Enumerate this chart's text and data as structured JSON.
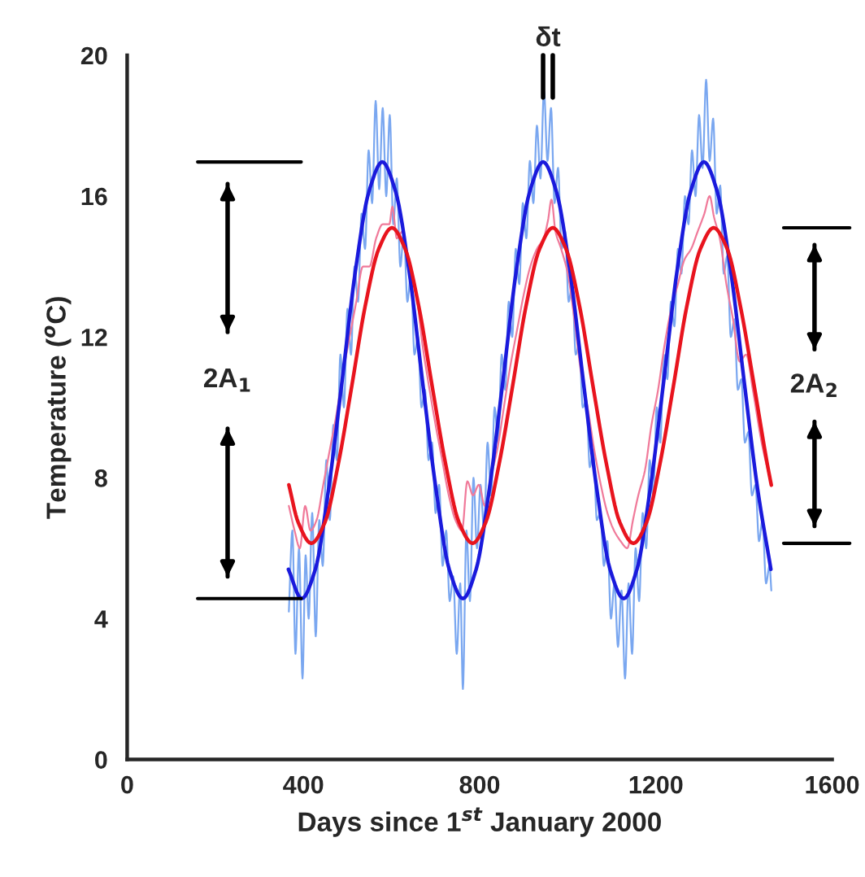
{
  "chart_data": {
    "type": "line",
    "xlabel": "Days since 1$^{st}$ January 2000",
    "ylabel": "Temperature ($^{o}$C)",
    "annotations": [
      "2A$_{1}$",
      "2A$_{2}$",
      "δt"
    ],
    "xlim": [
      0,
      1600
    ],
    "xticks": [
      0,
      400,
      800,
      1200,
      1600
    ],
    "ylim": [
      0,
      20
    ],
    "yticks": [
      0,
      4,
      8,
      12,
      16,
      20
    ],
    "grid": false,
    "legend": false,
    "marker": "none",
    "line_style": "solid",
    "series": [
      {
        "color": "#7aa7f0",
        "x": [
          367,
          375,
          382,
          390,
          398,
          405,
          412,
          420,
          428,
          436,
          444,
          452,
          460,
          468,
          476,
          484,
          492,
          500,
          508,
          516,
          524,
          532,
          540,
          548,
          556,
          564,
          572,
          580,
          588,
          596,
          604,
          612,
          620,
          628,
          636,
          644,
          652,
          660,
          668,
          676,
          684,
          692,
          700,
          708,
          716,
          724,
          732,
          740,
          748,
          756,
          762,
          770,
          778,
          786,
          794,
          802,
          810,
          818,
          826,
          834,
          842,
          850,
          858,
          866,
          874,
          882,
          890,
          898,
          906,
          914,
          922,
          930,
          938,
          946,
          954,
          962,
          970,
          978,
          986,
          994,
          1002,
          1010,
          1018,
          1026,
          1034,
          1042,
          1050,
          1058,
          1066,
          1074,
          1082,
          1090,
          1098,
          1106,
          1114,
          1122,
          1130,
          1138,
          1146,
          1154,
          1162,
          1170,
          1178,
          1186,
          1194,
          1202,
          1210,
          1218,
          1226,
          1234,
          1242,
          1250,
          1258,
          1266,
          1274,
          1282,
          1290,
          1298,
          1306,
          1314,
          1322,
          1330,
          1338,
          1346,
          1354,
          1362,
          1370,
          1378,
          1386,
          1394,
          1402,
          1410,
          1418,
          1426,
          1434,
          1442,
          1450,
          1458,
          1462
        ],
        "values": [
          4.2,
          6.5,
          3.0,
          6.0,
          2.3,
          5.8,
          4.0,
          7.0,
          3.5,
          6.8,
          5.5,
          8.5,
          6.8,
          9.5,
          8.5,
          11.5,
          10.0,
          12.8,
          11.5,
          14.0,
          13.0,
          15.5,
          14.5,
          17.3,
          15.8,
          18.7,
          16.2,
          18.5,
          16.0,
          18.3,
          15.2,
          16.5,
          14.0,
          15.0,
          13.0,
          13.8,
          11.5,
          12.0,
          10.0,
          10.5,
          8.5,
          9.0,
          7.0,
          7.8,
          5.5,
          6.5,
          4.5,
          5.2,
          3.0,
          5.0,
          2.0,
          6.5,
          4.5,
          8.0,
          6.0,
          7.8,
          6.5,
          9.0,
          7.5,
          10.0,
          9.0,
          11.5,
          10.5,
          13.0,
          12.0,
          14.5,
          13.5,
          15.8,
          14.8,
          17.0,
          15.8,
          18.0,
          16.5,
          19.0,
          17.0,
          18.5,
          15.8,
          16.8,
          14.5,
          15.0,
          13.0,
          13.5,
          11.5,
          11.8,
          10.0,
          10.2,
          8.3,
          8.8,
          6.8,
          7.0,
          5.5,
          6.2,
          4.0,
          5.0,
          3.2,
          4.8,
          2.3,
          5.0,
          3.0,
          6.0,
          4.5,
          7.0,
          6.0,
          8.5,
          7.5,
          10.0,
          9.0,
          11.5,
          10.8,
          13.0,
          12.3,
          14.5,
          13.8,
          16.0,
          15.2,
          17.3,
          16.0,
          18.3,
          16.8,
          19.3,
          17.0,
          18.2,
          15.5,
          16.3,
          13.8,
          14.3,
          12.0,
          12.5,
          10.5,
          10.8,
          9.0,
          9.3,
          7.5,
          7.8,
          6.2,
          6.8,
          5.0,
          5.5,
          4.8
        ]
      },
      {
        "color": "#f07a9a",
        "x": [
          367,
          380,
          392,
          404,
          416,
          430,
          445,
          460,
          475,
          490,
          505,
          520,
          535,
          550,
          565,
          580,
          595,
          602,
          612,
          625,
          640,
          655,
          670,
          685,
          700,
          715,
          730,
          745,
          760,
          772,
          785,
          798,
          812,
          825,
          840,
          855,
          870,
          885,
          900,
          915,
          930,
          945,
          955,
          963,
          972,
          985,
          1000,
          1015,
          1030,
          1045,
          1060,
          1075,
          1090,
          1105,
          1120,
          1135,
          1148,
          1160,
          1175,
          1190,
          1205,
          1220,
          1235,
          1250,
          1265,
          1280,
          1295,
          1310,
          1322,
          1332,
          1345,
          1360,
          1375,
          1390,
          1405,
          1420,
          1440,
          1462
        ],
        "values": [
          7.2,
          6.5,
          6.0,
          7.2,
          6.5,
          6.8,
          7.8,
          8.8,
          9.8,
          11.0,
          12.0,
          13.0,
          14.0,
          14.0,
          14.8,
          15.2,
          15.2,
          15.7,
          14.8,
          15.0,
          13.8,
          13.3,
          11.8,
          10.6,
          9.5,
          8.5,
          7.5,
          6.8,
          6.5,
          7.9,
          7.5,
          7.8,
          7.2,
          8.0,
          8.8,
          10.0,
          11.2,
          12.2,
          13.2,
          14.0,
          14.5,
          14.8,
          15.3,
          15.9,
          15.0,
          14.5,
          13.8,
          12.5,
          11.0,
          10.0,
          8.8,
          7.8,
          7.0,
          6.5,
          6.2,
          6.0,
          6.8,
          7.5,
          8.2,
          9.5,
          10.5,
          11.8,
          12.8,
          13.5,
          14.2,
          14.5,
          15.0,
          15.5,
          16.0,
          15.4,
          14.8,
          13.5,
          12.5,
          11.3,
          11.5,
          10.5,
          9.0,
          7.8
        ]
      },
      {
        "color": "#1a1adc",
        "x": [
          366,
          396,
          427,
          457,
          488,
          518,
          549,
          579,
          609,
          640,
          670,
          701,
          731,
          762,
          792,
          822,
          853,
          883,
          914,
          944,
          974,
          1005,
          1035,
          1066,
          1096,
          1127,
          1157,
          1187,
          1218,
          1248,
          1279,
          1309,
          1339,
          1370,
          1400,
          1431,
          1461
        ],
        "values": [
          5.4,
          4.57,
          5.4,
          7.67,
          10.77,
          13.87,
          16.14,
          16.97,
          16.14,
          13.87,
          10.77,
          7.67,
          5.4,
          4.57,
          5.4,
          7.67,
          10.77,
          13.87,
          16.14,
          16.97,
          16.14,
          13.87,
          10.77,
          7.67,
          5.4,
          4.57,
          5.4,
          7.67,
          10.77,
          13.87,
          16.14,
          16.97,
          16.14,
          13.87,
          10.77,
          7.67,
          5.4
        ]
      },
      {
        "color": "#e8141e",
        "x": [
          367,
          388,
          418,
          449,
          479,
          510,
          540,
          571,
          601,
          631,
          662,
          692,
          723,
          753,
          784,
          814,
          844,
          875,
          905,
          936,
          966,
          996,
          1027,
          1057,
          1088,
          1118,
          1149,
          1179,
          1209,
          1240,
          1270,
          1301,
          1331,
          1362,
          1392,
          1423,
          1453,
          1462
        ],
        "values": [
          7.8,
          6.74,
          6.14,
          6.74,
          8.38,
          10.62,
          12.86,
          14.5,
          15.1,
          14.5,
          12.86,
          10.62,
          8.38,
          6.74,
          6.14,
          6.74,
          8.38,
          10.62,
          12.86,
          14.5,
          15.1,
          14.5,
          12.86,
          10.62,
          8.38,
          6.74,
          6.14,
          6.74,
          8.38,
          10.62,
          12.86,
          14.5,
          15.1,
          14.5,
          12.86,
          10.62,
          8.38,
          7.79
        ]
      }
    ]
  }
}
